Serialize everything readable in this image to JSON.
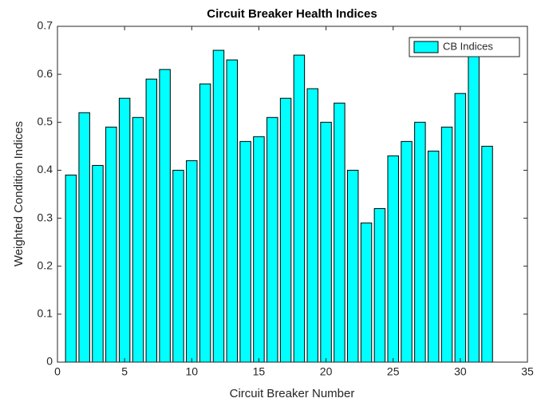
{
  "chart_data": {
    "type": "bar",
    "title": "Circuit Breaker Health Indices",
    "xlabel": "Circuit Breaker Number",
    "ylabel": "Weighted Condition Indices",
    "x": [
      1,
      2,
      3,
      4,
      5,
      6,
      7,
      8,
      9,
      10,
      11,
      12,
      13,
      14,
      15,
      16,
      17,
      18,
      19,
      20,
      21,
      22,
      23,
      24,
      25,
      26,
      27,
      28,
      29,
      30,
      31,
      32
    ],
    "series": [
      {
        "name": "CB Indices",
        "color": "#00ffff",
        "values": [
          0.39,
          0.52,
          0.41,
          0.49,
          0.55,
          0.51,
          0.59,
          0.61,
          0.4,
          0.42,
          0.58,
          0.65,
          0.63,
          0.46,
          0.47,
          0.51,
          0.55,
          0.64,
          0.57,
          0.5,
          0.54,
          0.4,
          0.29,
          0.32,
          0.43,
          0.46,
          0.5,
          0.44,
          0.49,
          0.56,
          0.66,
          0.45
        ]
      }
    ],
    "xlim": [
      0,
      35
    ],
    "xticks": [
      0,
      5,
      10,
      15,
      20,
      25,
      30,
      35
    ],
    "ylim": [
      0,
      0.7
    ],
    "yticks": [
      0,
      0.1,
      0.2,
      0.3,
      0.4,
      0.5,
      0.6,
      0.7
    ],
    "legend": "northeast"
  }
}
